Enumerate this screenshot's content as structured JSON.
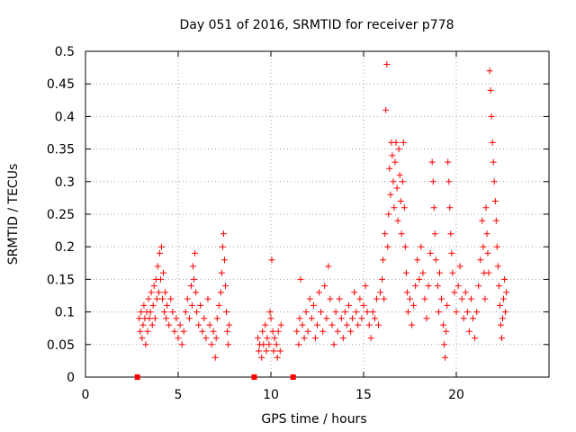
{
  "chart_data": {
    "type": "scatter",
    "title": "Day 051 of 2016, SRMTID for receiver p778",
    "xlabel": "GPS time / hours",
    "ylabel": "SRMTID / TECUs",
    "xlim": [
      0,
      25
    ],
    "ylim": [
      0,
      0.5
    ],
    "x_ticks": [
      0,
      5,
      10,
      15,
      20
    ],
    "x_tick_labels": [
      "0",
      "5",
      "10",
      "15",
      "20"
    ],
    "y_ticks": [
      0,
      0.05,
      0.1,
      0.15,
      0.2,
      0.25,
      0.3,
      0.35,
      0.4,
      0.45,
      0.5
    ],
    "y_tick_labels": [
      "0",
      "0.05",
      "0.1",
      "0.15",
      "0.2",
      "0.25",
      "0.3",
      "0.35",
      "0.4",
      "0.45",
      "0.5"
    ],
    "grid": true,
    "marker": "+",
    "color": "#ff0000",
    "series": [
      {
        "name": "SRMTID",
        "marker": "+",
        "points": [
          [
            2.9,
            0.09
          ],
          [
            2.95,
            0.07
          ],
          [
            3.0,
            0.1
          ],
          [
            3.05,
            0.06
          ],
          [
            3.1,
            0.08
          ],
          [
            3.15,
            0.11
          ],
          [
            3.2,
            0.09
          ],
          [
            3.25,
            0.05
          ],
          [
            3.3,
            0.1
          ],
          [
            3.35,
            0.07
          ],
          [
            3.4,
            0.12
          ],
          [
            3.45,
            0.09
          ],
          [
            3.5,
            0.1
          ],
          [
            3.55,
            0.13
          ],
          [
            3.6,
            0.08
          ],
          [
            3.65,
            0.11
          ],
          [
            3.7,
            0.14
          ],
          [
            3.75,
            0.09
          ],
          [
            3.8,
            0.15
          ],
          [
            3.85,
            0.12
          ],
          [
            3.9,
            0.17
          ],
          [
            3.95,
            0.13
          ],
          [
            4.0,
            0.19
          ],
          [
            4.05,
            0.15
          ],
          [
            4.1,
            0.2
          ],
          [
            4.15,
            0.12
          ],
          [
            4.2,
            0.16
          ],
          [
            4.25,
            0.1
          ],
          [
            4.3,
            0.13
          ],
          [
            4.35,
            0.09
          ],
          [
            4.4,
            0.11
          ],
          [
            4.5,
            0.08
          ],
          [
            4.6,
            0.12
          ],
          [
            4.7,
            0.1
          ],
          [
            4.8,
            0.07
          ],
          [
            4.9,
            0.09
          ],
          [
            5.0,
            0.06
          ],
          [
            5.1,
            0.08
          ],
          [
            5.2,
            0.05
          ],
          [
            5.3,
            0.07
          ],
          [
            5.4,
            0.1
          ],
          [
            5.5,
            0.12
          ],
          [
            5.6,
            0.09
          ],
          [
            5.7,
            0.14
          ],
          [
            5.75,
            0.11
          ],
          [
            5.8,
            0.17
          ],
          [
            5.85,
            0.15
          ],
          [
            5.9,
            0.19
          ],
          [
            5.95,
            0.13
          ],
          [
            6.0,
            0.1
          ],
          [
            6.1,
            0.08
          ],
          [
            6.2,
            0.11
          ],
          [
            6.3,
            0.07
          ],
          [
            6.4,
            0.09
          ],
          [
            6.5,
            0.06
          ],
          [
            6.6,
            0.12
          ],
          [
            6.7,
            0.08
          ],
          [
            6.8,
            0.05
          ],
          [
            6.9,
            0.07
          ],
          [
            7.0,
            0.03
          ],
          [
            7.05,
            0.06
          ],
          [
            7.1,
            0.09
          ],
          [
            7.2,
            0.11
          ],
          [
            7.3,
            0.13
          ],
          [
            7.35,
            0.16
          ],
          [
            7.4,
            0.2
          ],
          [
            7.45,
            0.22
          ],
          [
            7.5,
            0.18
          ],
          [
            7.55,
            0.14
          ],
          [
            7.6,
            0.1
          ],
          [
            7.65,
            0.07
          ],
          [
            7.7,
            0.05
          ],
          [
            7.75,
            0.08
          ],
          [
            9.3,
            0.06
          ],
          [
            9.35,
            0.04
          ],
          [
            9.4,
            0.05
          ],
          [
            9.5,
            0.03
          ],
          [
            9.55,
            0.07
          ],
          [
            9.6,
            0.05
          ],
          [
            9.7,
            0.08
          ],
          [
            9.75,
            0.04
          ],
          [
            9.8,
            0.06
          ],
          [
            9.9,
            0.05
          ],
          [
            9.95,
            0.1
          ],
          [
            10.0,
            0.09
          ],
          [
            10.05,
            0.18
          ],
          [
            10.1,
            0.07
          ],
          [
            10.15,
            0.04
          ],
          [
            10.2,
            0.06
          ],
          [
            10.3,
            0.05
          ],
          [
            10.35,
            0.03
          ],
          [
            10.4,
            0.07
          ],
          [
            10.5,
            0.04
          ],
          [
            10.55,
            0.08
          ],
          [
            11.4,
            0.07
          ],
          [
            11.5,
            0.05
          ],
          [
            11.55,
            0.09
          ],
          [
            11.6,
            0.15
          ],
          [
            11.7,
            0.08
          ],
          [
            11.8,
            0.06
          ],
          [
            11.9,
            0.1
          ],
          [
            12.0,
            0.07
          ],
          [
            12.1,
            0.12
          ],
          [
            12.2,
            0.09
          ],
          [
            12.3,
            0.11
          ],
          [
            12.4,
            0.06
          ],
          [
            12.5,
            0.08
          ],
          [
            12.6,
            0.13
          ],
          [
            12.7,
            0.1
          ],
          [
            12.8,
            0.07
          ],
          [
            12.9,
            0.14
          ],
          [
            13.0,
            0.09
          ],
          [
            13.1,
            0.17
          ],
          [
            13.2,
            0.12
          ],
          [
            13.3,
            0.08
          ],
          [
            13.4,
            0.05
          ],
          [
            13.5,
            0.1
          ],
          [
            13.6,
            0.07
          ],
          [
            13.7,
            0.12
          ],
          [
            13.8,
            0.09
          ],
          [
            13.9,
            0.06
          ],
          [
            14.0,
            0.1
          ],
          [
            14.1,
            0.08
          ],
          [
            14.2,
            0.11
          ],
          [
            14.3,
            0.07
          ],
          [
            14.4,
            0.09
          ],
          [
            14.5,
            0.13
          ],
          [
            14.6,
            0.1
          ],
          [
            14.7,
            0.08
          ],
          [
            14.8,
            0.12
          ],
          [
            14.9,
            0.09
          ],
          [
            15.0,
            0.11
          ],
          [
            15.1,
            0.14
          ],
          [
            15.2,
            0.1
          ],
          [
            15.3,
            0.08
          ],
          [
            15.4,
            0.06
          ],
          [
            15.5,
            0.1
          ],
          [
            15.6,
            0.09
          ],
          [
            15.7,
            0.12
          ],
          [
            15.8,
            0.08
          ],
          [
            15.9,
            0.13
          ],
          [
            16.0,
            0.15
          ],
          [
            16.05,
            0.18
          ],
          [
            16.1,
            0.12
          ],
          [
            16.15,
            0.22
          ],
          [
            16.2,
            0.41
          ],
          [
            16.25,
            0.48
          ],
          [
            16.3,
            0.2
          ],
          [
            16.35,
            0.25
          ],
          [
            16.4,
            0.32
          ],
          [
            16.45,
            0.28
          ],
          [
            16.5,
            0.36
          ],
          [
            16.55,
            0.34
          ],
          [
            16.6,
            0.3
          ],
          [
            16.65,
            0.26
          ],
          [
            16.7,
            0.33
          ],
          [
            16.75,
            0.36
          ],
          [
            16.8,
            0.29
          ],
          [
            16.85,
            0.24
          ],
          [
            16.9,
            0.35
          ],
          [
            16.95,
            0.31
          ],
          [
            17.0,
            0.27
          ],
          [
            17.05,
            0.22
          ],
          [
            17.1,
            0.3
          ],
          [
            17.15,
            0.36
          ],
          [
            17.2,
            0.26
          ],
          [
            17.25,
            0.2
          ],
          [
            17.3,
            0.16
          ],
          [
            17.35,
            0.13
          ],
          [
            17.4,
            0.1
          ],
          [
            17.5,
            0.12
          ],
          [
            17.6,
            0.08
          ],
          [
            17.7,
            0.11
          ],
          [
            17.8,
            0.14
          ],
          [
            17.9,
            0.18
          ],
          [
            18.0,
            0.15
          ],
          [
            18.1,
            0.2
          ],
          [
            18.2,
            0.16
          ],
          [
            18.3,
            0.12
          ],
          [
            18.4,
            0.09
          ],
          [
            18.5,
            0.14
          ],
          [
            18.6,
            0.19
          ],
          [
            18.7,
            0.33
          ],
          [
            18.75,
            0.3
          ],
          [
            18.8,
            0.26
          ],
          [
            18.85,
            0.22
          ],
          [
            18.9,
            0.18
          ],
          [
            19.0,
            0.14
          ],
          [
            19.05,
            0.1
          ],
          [
            19.1,
            0.16
          ],
          [
            19.2,
            0.12
          ],
          [
            19.3,
            0.08
          ],
          [
            19.35,
            0.05
          ],
          [
            19.4,
            0.03
          ],
          [
            19.45,
            0.07
          ],
          [
            19.5,
            0.11
          ],
          [
            19.55,
            0.33
          ],
          [
            19.6,
            0.3
          ],
          [
            19.65,
            0.26
          ],
          [
            19.7,
            0.22
          ],
          [
            19.75,
            0.19
          ],
          [
            19.8,
            0.16
          ],
          [
            19.9,
            0.13
          ],
          [
            20.0,
            0.1
          ],
          [
            20.1,
            0.14
          ],
          [
            20.2,
            0.17
          ],
          [
            20.3,
            0.12
          ],
          [
            20.4,
            0.09
          ],
          [
            20.5,
            0.13
          ],
          [
            20.6,
            0.1
          ],
          [
            20.7,
            0.07
          ],
          [
            20.8,
            0.12
          ],
          [
            20.9,
            0.09
          ],
          [
            21.0,
            0.06
          ],
          [
            21.1,
            0.1
          ],
          [
            21.2,
            0.14
          ],
          [
            21.3,
            0.18
          ],
          [
            21.4,
            0.24
          ],
          [
            21.45,
            0.2
          ],
          [
            21.5,
            0.16
          ],
          [
            21.55,
            0.12
          ],
          [
            21.6,
            0.26
          ],
          [
            21.65,
            0.22
          ],
          [
            21.7,
            0.19
          ],
          [
            21.75,
            0.16
          ],
          [
            21.8,
            0.47
          ],
          [
            21.85,
            0.44
          ],
          [
            21.9,
            0.4
          ],
          [
            21.95,
            0.36
          ],
          [
            22.0,
            0.33
          ],
          [
            22.05,
            0.3
          ],
          [
            22.1,
            0.27
          ],
          [
            22.15,
            0.24
          ],
          [
            22.2,
            0.2
          ],
          [
            22.25,
            0.17
          ],
          [
            22.3,
            0.14
          ],
          [
            22.35,
            0.11
          ],
          [
            22.4,
            0.08
          ],
          [
            22.45,
            0.06
          ],
          [
            22.5,
            0.09
          ],
          [
            22.55,
            0.12
          ],
          [
            22.6,
            0.15
          ],
          [
            22.65,
            0.1
          ],
          [
            22.7,
            0.13
          ]
        ]
      }
    ],
    "gap_markers": [
      {
        "x": 2.8,
        "y": 0
      },
      {
        "x": 9.1,
        "y": 0
      },
      {
        "x": 11.2,
        "y": 0
      }
    ]
  }
}
